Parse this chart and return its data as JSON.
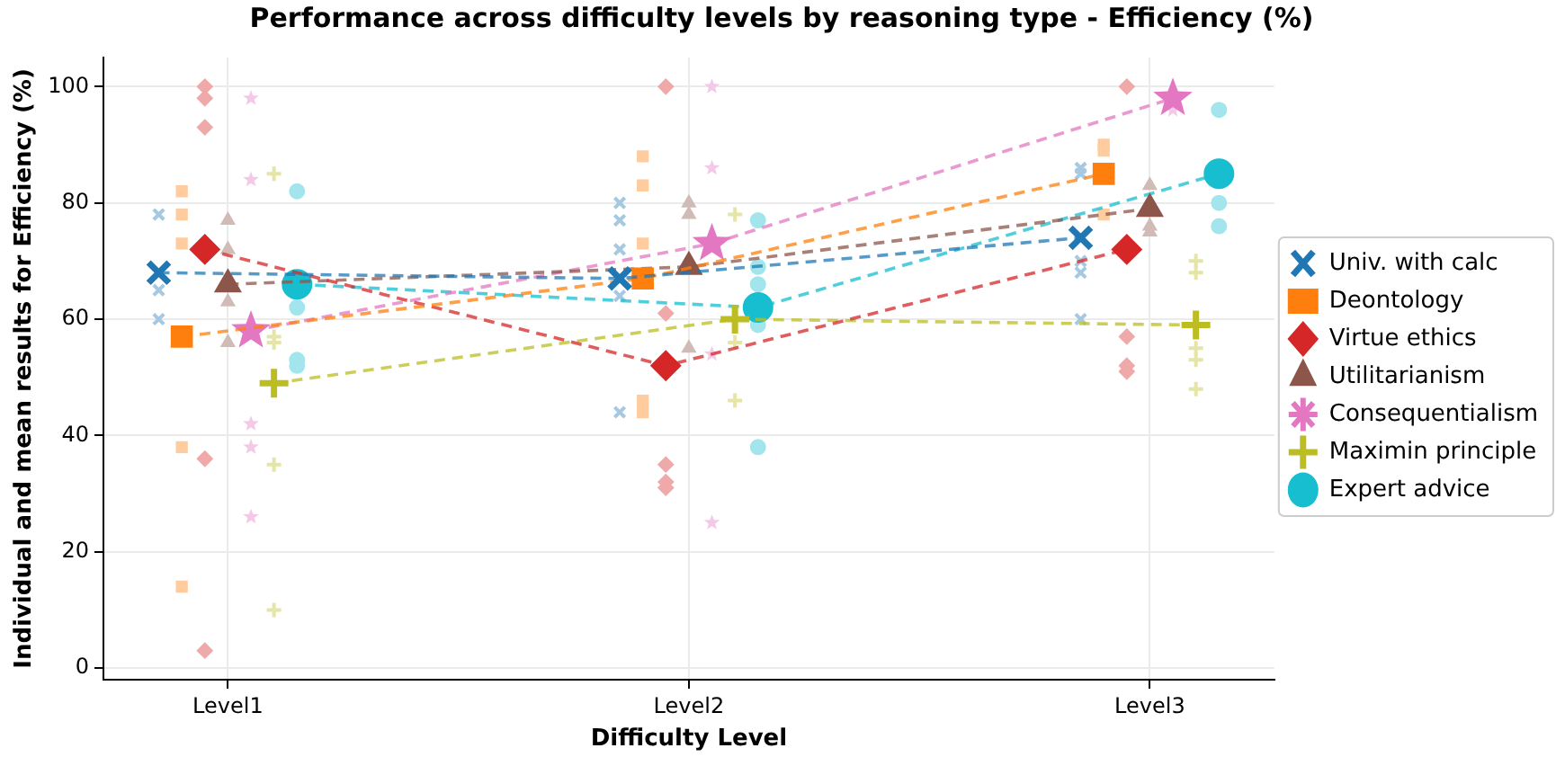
{
  "chart_data": {
    "type": "scatter",
    "title": "Performance across difficulty levels by reasoning type - Efficiency (%)",
    "xlabel": "Difficulty Level",
    "ylabel": "Individual and mean results for Efficiency (%)",
    "categories": [
      "Level1",
      "Level2",
      "Level3"
    ],
    "ylim": [
      -2,
      105
    ],
    "yticks": [
      0,
      20,
      40,
      60,
      80,
      100
    ],
    "grid": true,
    "legend": "right",
    "series": [
      {
        "color": "#a5c9e1",
        "marker": "x",
        "x": [
          "Level1",
          "Level1",
          "Level1",
          "Level2",
          "Level2",
          "Level2",
          "Level2",
          "Level2",
          "Level3",
          "Level3",
          "Level3",
          "Level3",
          "Level3"
        ],
        "values": [
          78,
          65,
          60,
          80,
          77,
          72,
          64,
          44,
          86,
          85,
          70,
          68,
          60
        ]
      },
      {
        "color": "#ffcc9f",
        "marker": "square",
        "x": [
          "Level1",
          "Level1",
          "Level1",
          "Level1",
          "Level1",
          "Level2",
          "Level2",
          "Level2",
          "Level2",
          "Level2",
          "Level3",
          "Level3",
          "Level3"
        ],
        "values": [
          82,
          78,
          73,
          38,
          14,
          88,
          83,
          73,
          46,
          44,
          90,
          89,
          78
        ]
      },
      {
        "color": "#efa9a9",
        "marker": "diamond",
        "x": [
          "Level1",
          "Level1",
          "Level1",
          "Level1",
          "Level1",
          "Level2",
          "Level2",
          "Level2",
          "Level2",
          "Level2",
          "Level3",
          "Level3",
          "Level3",
          "Level3"
        ],
        "values": [
          100,
          98,
          93,
          36,
          3,
          100,
          61,
          35,
          32,
          31,
          100,
          57,
          52,
          51
        ]
      },
      {
        "color": "#d1bbb7",
        "marker": "triangle",
        "x": [
          "Level1",
          "Level1",
          "Level1",
          "Level1",
          "Level2",
          "Level2",
          "Level2",
          "Level3",
          "Level3",
          "Level3"
        ],
        "values": [
          77,
          72,
          63,
          56,
          80,
          78,
          55,
          83,
          76,
          75
        ]
      },
      {
        "color": "#f4c9e7",
        "marker": "star",
        "x": [
          "Level1",
          "Level1",
          "Level1",
          "Level1",
          "Level1",
          "Level2",
          "Level2",
          "Level2",
          "Level2",
          "Level3"
        ],
        "values": [
          98,
          84,
          42,
          38,
          26,
          100,
          86,
          54,
          25,
          96
        ]
      },
      {
        "color": "#e4e5a7",
        "marker": "cross",
        "x": [
          "Level1",
          "Level1",
          "Level1",
          "Level1",
          "Level1",
          "Level2",
          "Level2",
          "Level2",
          "Level3",
          "Level3",
          "Level3",
          "Level3",
          "Level3"
        ],
        "values": [
          85,
          57,
          56,
          35,
          10,
          78,
          56,
          46,
          70,
          68,
          55,
          53,
          48
        ]
      },
      {
        "color": "#a2e5ec",
        "marker": "circle",
        "x": [
          "Level1",
          "Level1",
          "Level1",
          "Level1",
          "Level2",
          "Level2",
          "Level2",
          "Level2",
          "Level2",
          "Level3",
          "Level3",
          "Level3"
        ],
        "values": [
          82,
          62,
          53,
          52,
          77,
          69,
          66,
          59,
          38,
          96,
          80,
          76
        ]
      },
      {
        "name": "Univ. with calc",
        "type": "line",
        "color": "#1f77b4",
        "marker": "x",
        "line_style": "dashed",
        "values": [
          68,
          67,
          74
        ]
      },
      {
        "name": "Deontology",
        "type": "line",
        "color": "#ff7f0e",
        "marker": "square",
        "line_style": "dashed",
        "values": [
          57,
          67,
          85
        ]
      },
      {
        "name": "Virtue ethics",
        "type": "line",
        "color": "#d62728",
        "marker": "diamond",
        "line_style": "dashed",
        "values": [
          72,
          52,
          72
        ]
      },
      {
        "name": "Utilitarianism",
        "type": "line",
        "color": "#8c564b",
        "marker": "triangle",
        "line_style": "dashed",
        "values": [
          66,
          69,
          79
        ]
      },
      {
        "name": "Consequentialism",
        "type": "line",
        "color": "#e377c2",
        "marker": "star",
        "line_style": "dashed",
        "values": [
          58,
          73,
          98
        ]
      },
      {
        "name": "Maximin principle",
        "type": "line",
        "color": "#bcbd22",
        "marker": "cross",
        "line_style": "dashed",
        "values": [
          49,
          60,
          59
        ]
      },
      {
        "name": "Expert advice",
        "type": "line",
        "color": "#17becf",
        "marker": "circle",
        "line_style": "dashed",
        "values": [
          66,
          62,
          85
        ]
      }
    ]
  }
}
